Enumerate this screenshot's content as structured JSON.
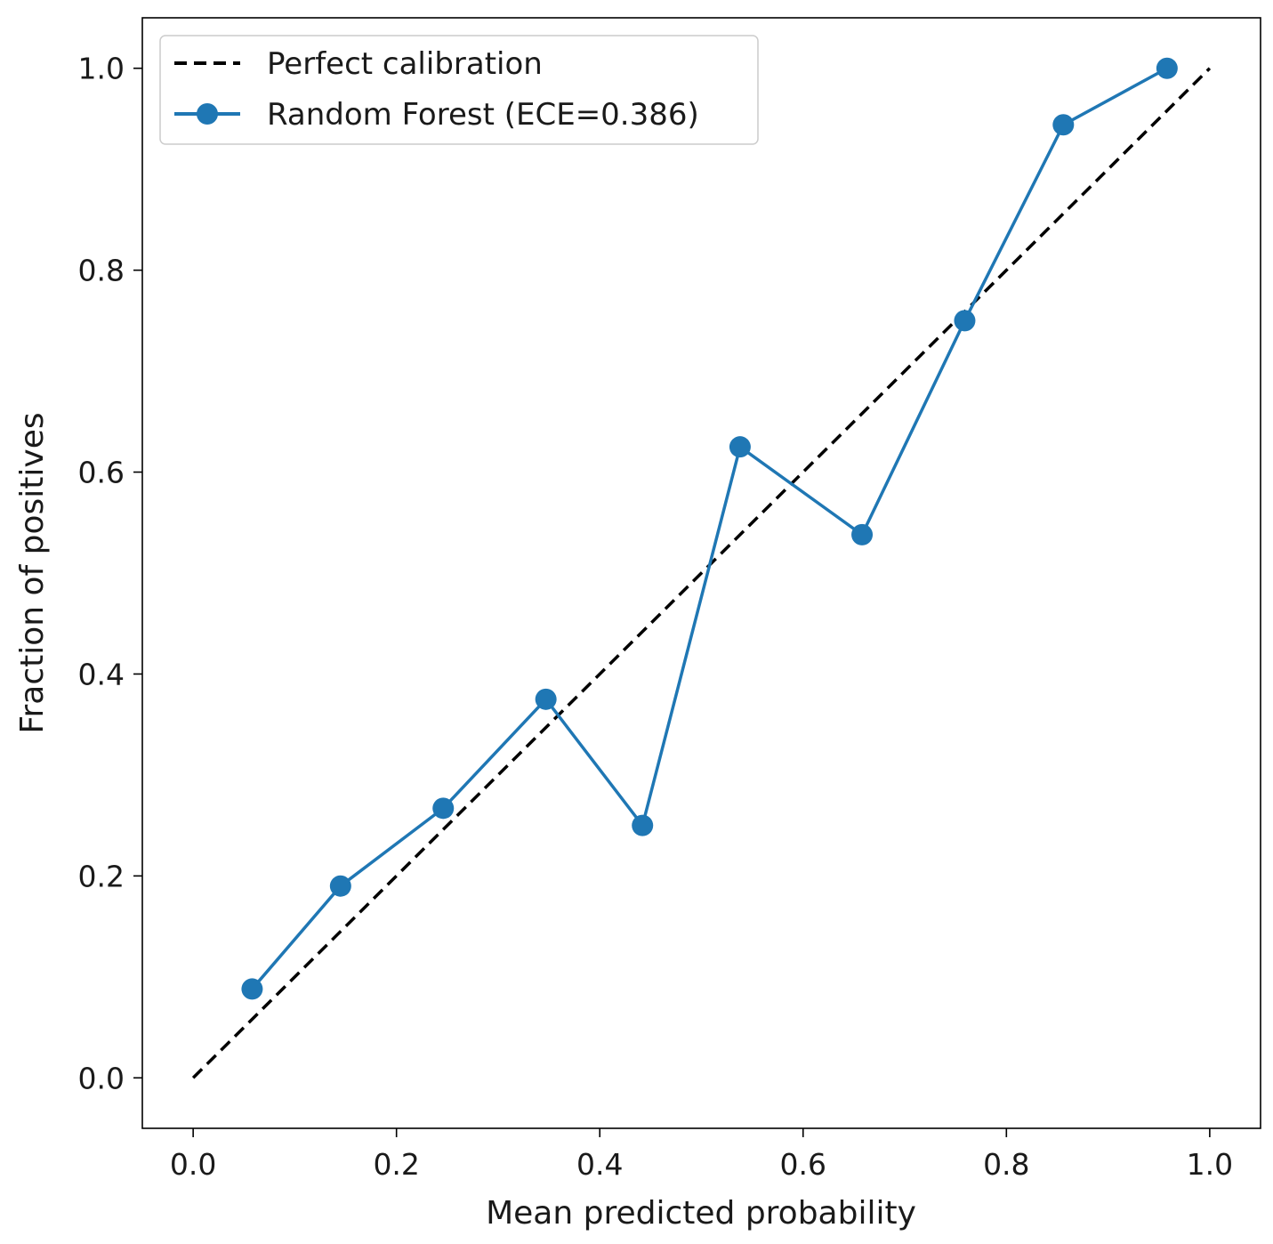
{
  "chart_data": {
    "type": "line",
    "title": "",
    "xlabel": "Mean predicted probability",
    "ylabel": "Fraction of positives",
    "xlim": [
      -0.05,
      1.05
    ],
    "ylim": [
      -0.05,
      1.05
    ],
    "grid": false,
    "legend_position": "top-left",
    "xticks": [
      0.0,
      0.2,
      0.4,
      0.6,
      0.8,
      1.0
    ],
    "xtick_labels": [
      "0.0",
      "0.2",
      "0.4",
      "0.6",
      "0.8",
      "1.0"
    ],
    "yticks": [
      0.0,
      0.2,
      0.4,
      0.6,
      0.8,
      1.0
    ],
    "ytick_labels": [
      "0.0",
      "0.2",
      "0.4",
      "0.6",
      "0.8",
      "1.0"
    ],
    "series": [
      {
        "name": "Perfect calibration",
        "style": "dashed",
        "color": "#000000",
        "x": [
          0.0,
          1.0
        ],
        "y": [
          0.0,
          1.0
        ]
      },
      {
        "name": "Random Forest (ECE=0.386)",
        "style": "line-marker",
        "color": "#1f77b4",
        "x": [
          0.058,
          0.145,
          0.246,
          0.347,
          0.442,
          0.538,
          0.658,
          0.759,
          0.856,
          0.958
        ],
        "y": [
          0.088,
          0.19,
          0.267,
          0.375,
          0.25,
          0.625,
          0.538,
          0.75,
          0.944,
          1.0
        ]
      }
    ]
  }
}
